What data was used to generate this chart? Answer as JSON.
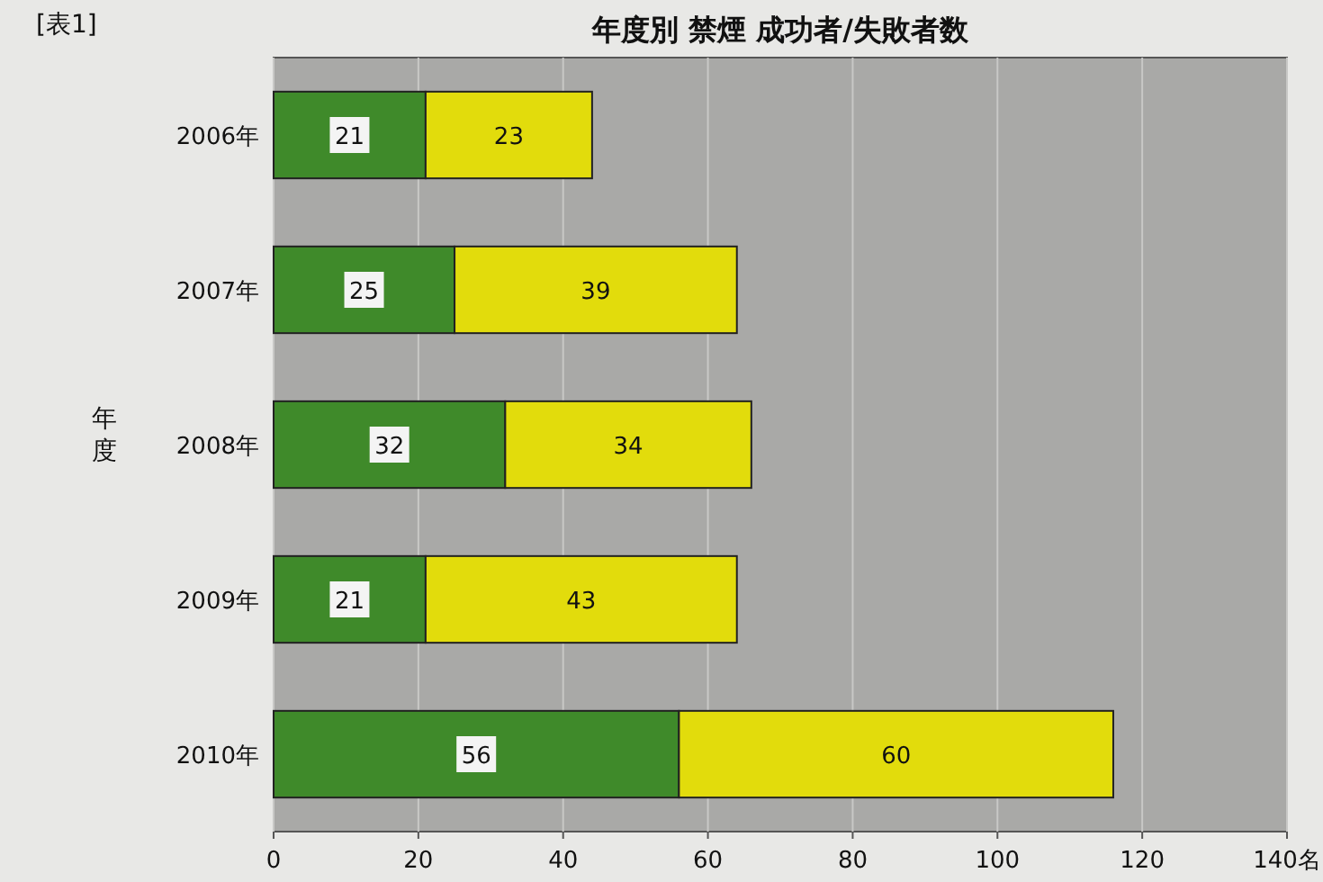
{
  "chart_data": {
    "type": "bar",
    "orientation": "horizontal",
    "stacked": true,
    "title": "年度別 禁煙 成功者/失敗者数",
    "ylabel": "年度",
    "annotations": [
      "[表1]"
    ],
    "categories": [
      "2006年",
      "2007年",
      "2008年",
      "2009年",
      "2010年"
    ],
    "series": [
      {
        "color": "#3f8a2a",
        "values": [
          21,
          25,
          32,
          21,
          56
        ]
      },
      {
        "color": "#e2dc0c",
        "values": [
          23,
          39,
          34,
          43,
          60
        ]
      }
    ],
    "xlim": [
      0,
      140
    ],
    "xticks": [
      0,
      20,
      40,
      60,
      80,
      100,
      120,
      {
        "value": 140,
        "label": "140名"
      }
    ],
    "grid": "x",
    "data_labels": true
  }
}
